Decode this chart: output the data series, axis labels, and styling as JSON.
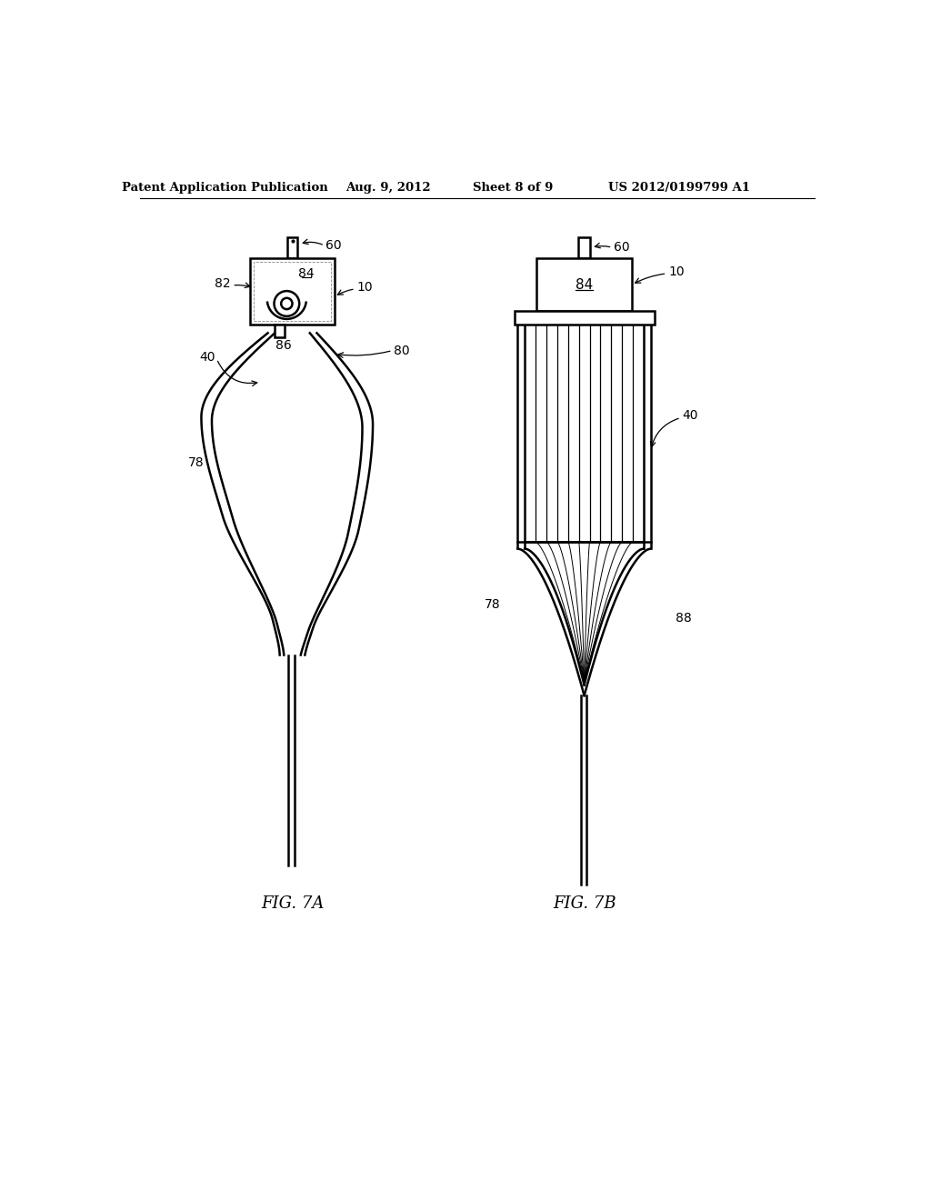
{
  "title_left": "Patent Application Publication",
  "title_mid": "Aug. 9, 2012",
  "title_right1": "Sheet 8 of 9",
  "title_right2": "US 2012/0199799 A1",
  "fig7a_label": "FIG. 7A",
  "fig7b_label": "FIG. 7B",
  "bg_color": "#ffffff",
  "line_color": "#000000"
}
